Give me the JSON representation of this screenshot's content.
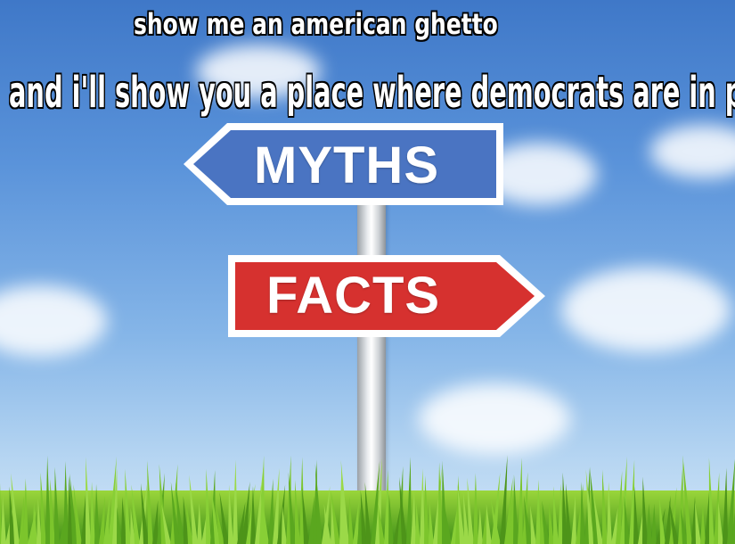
{
  "meme": {
    "top_caption": "show me an american ghetto",
    "bottom_caption": "and i'll show you a place where democrats are in power"
  },
  "signs": {
    "myths": {
      "label": "MYTHS",
      "color": "#4a74c2",
      "direction": "left"
    },
    "facts": {
      "label": "FACTS",
      "color": "#d6312f",
      "direction": "right"
    }
  },
  "colors": {
    "sky": "#5a93da",
    "grass": "#6fbf2a",
    "sign_border": "#ffffff"
  }
}
